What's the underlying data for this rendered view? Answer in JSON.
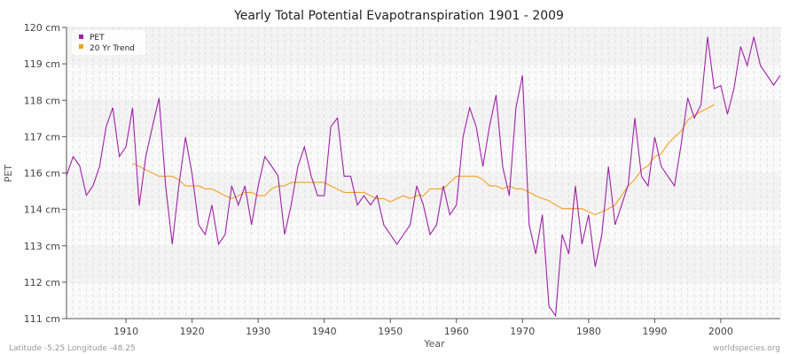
{
  "chart_data": {
    "type": "line",
    "title": "Yearly Total Potential Evapotranspiration 1901 - 2009",
    "xlabel": "Year",
    "ylabel": "PET",
    "xlim": [
      1901,
      2009
    ],
    "ylim": [
      111,
      120
    ],
    "x_ticks": [
      1910,
      1920,
      1930,
      1940,
      1950,
      1960,
      1970,
      1980,
      1990,
      2000
    ],
    "y_ticks": [
      {
        "value": 111,
        "label": "111 cm"
      },
      {
        "value": 112.125,
        "label": "112 cm"
      },
      {
        "value": 113.25,
        "label": "113 cm"
      },
      {
        "value": 114.375,
        "label": "114 cm"
      },
      {
        "value": 115.5,
        "label": "116 cm"
      },
      {
        "value": 116.625,
        "label": "117 cm"
      },
      {
        "value": 117.75,
        "label": "118 cm"
      },
      {
        "value": 118.875,
        "label": "119 cm"
      },
      {
        "value": 120,
        "label": "120 cm"
      }
    ],
    "grid": true,
    "legend_position": "top-left",
    "series": [
      {
        "name": "PET",
        "color": "#a020a8",
        "x_start": 1901,
        "values": [
          115.42,
          116.01,
          115.72,
          114.81,
          115.1,
          115.7,
          116.93,
          117.52,
          116.01,
          116.31,
          117.52,
          114.49,
          116.01,
          116.93,
          117.82,
          115.1,
          113.3,
          115.1,
          116.61,
          115.47,
          113.9,
          113.6,
          114.51,
          113.3,
          113.6,
          115.1,
          114.51,
          115.1,
          113.9,
          115.1,
          116.01,
          115.72,
          115.42,
          113.6,
          114.51,
          115.7,
          116.31,
          115.42,
          114.8,
          114.8,
          116.93,
          117.2,
          115.4,
          115.4,
          114.51,
          114.8,
          114.51,
          114.8,
          113.9,
          113.6,
          113.3,
          113.6,
          113.9,
          115.1,
          114.51,
          113.6,
          113.9,
          115.1,
          114.21,
          114.51,
          116.61,
          117.52,
          116.93,
          115.7,
          116.93,
          117.91,
          115.7,
          114.8,
          117.52,
          118.52,
          113.9,
          113.0,
          114.21,
          111.38,
          111.09,
          113.6,
          113.0,
          115.1,
          113.3,
          114.21,
          112.6,
          113.6,
          115.7,
          113.9,
          114.51,
          115.15,
          117.2,
          115.4,
          115.1,
          116.61,
          115.7,
          115.4,
          115.1,
          116.38,
          117.82,
          117.2,
          117.61,
          119.71,
          118.11,
          118.2,
          117.32,
          118.11,
          119.41,
          118.82,
          119.71,
          118.82,
          118.52,
          118.22,
          118.52
        ]
      },
      {
        "name": "20 Yr Trend",
        "color": "#f5a020",
        "x_start": 1911,
        "values": [
          115.81,
          115.7,
          115.6,
          115.5,
          115.4,
          115.4,
          115.4,
          115.29,
          115.1,
          115.1,
          115.1,
          115.01,
          115.01,
          114.9,
          114.8,
          114.71,
          114.8,
          114.9,
          114.9,
          114.8,
          114.8,
          115.01,
          115.1,
          115.1,
          115.21,
          115.21,
          115.21,
          115.21,
          115.21,
          115.21,
          115.1,
          115.0,
          114.9,
          114.9,
          114.9,
          114.9,
          114.8,
          114.71,
          114.71,
          114.61,
          114.71,
          114.8,
          114.71,
          114.8,
          114.8,
          115.01,
          115.01,
          115.01,
          115.21,
          115.4,
          115.4,
          115.4,
          115.4,
          115.3,
          115.1,
          115.1,
          115.01,
          115.1,
          115.01,
          115.01,
          114.9,
          114.8,
          114.71,
          114.65,
          114.51,
          114.4,
          114.4,
          114.4,
          114.4,
          114.3,
          114.21,
          114.3,
          114.4,
          114.51,
          114.81,
          115.1,
          115.3,
          115.6,
          115.72,
          116.01,
          116.1,
          116.4,
          116.61,
          116.79,
          117.13,
          117.29,
          117.4,
          117.5,
          117.61
        ]
      }
    ]
  },
  "footer": {
    "location": "Latitude -5.25 Longitude -48.25",
    "source": "worldspecies.org"
  }
}
